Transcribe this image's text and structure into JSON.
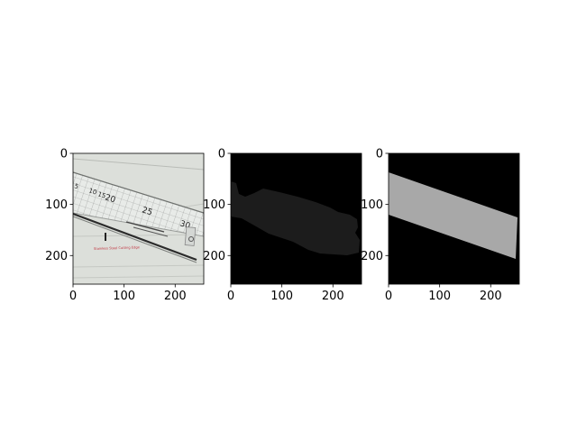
{
  "figure": {
    "background": "#ffffff"
  },
  "chart_data": [
    {
      "type": "image",
      "content": "photo of a clear plastic ruler on lined paper",
      "xlim": [
        0,
        256
      ],
      "ylim": [
        256,
        0
      ],
      "xticks": [
        0,
        100,
        200
      ],
      "yticks": [
        0,
        100,
        200
      ],
      "tick_labels": {
        "x": [
          "0",
          "100",
          "200"
        ],
        "y": [
          "0",
          "100",
          "200"
        ]
      },
      "visible_text": [
        "5",
        "10",
        "15",
        "20",
        "25",
        "30",
        "Stainless Steel Cutting Edge"
      ]
    },
    {
      "type": "image",
      "content": "dark segmentation mask on black background",
      "xlim": [
        0,
        256
      ],
      "ylim": [
        256,
        0
      ],
      "xticks": [
        0,
        100,
        200
      ],
      "yticks": [
        0,
        100,
        200
      ],
      "tick_labels": {
        "x": [
          "0",
          "100",
          "200"
        ],
        "y": [
          "0",
          "100",
          "200"
        ]
      },
      "mask_color": "#1c1c1c",
      "background_color": "#000000"
    },
    {
      "type": "image",
      "content": "gray band mask on black background",
      "xlim": [
        0,
        256
      ],
      "ylim": [
        256,
        0
      ],
      "xticks": [
        0,
        100,
        200
      ],
      "yticks": [
        0,
        100,
        200
      ],
      "tick_labels": {
        "x": [
          "0",
          "100",
          "200"
        ],
        "y": [
          "0",
          "100",
          "200"
        ]
      },
      "mask_color": "#a8a8a8",
      "background_color": "#000000"
    }
  ]
}
